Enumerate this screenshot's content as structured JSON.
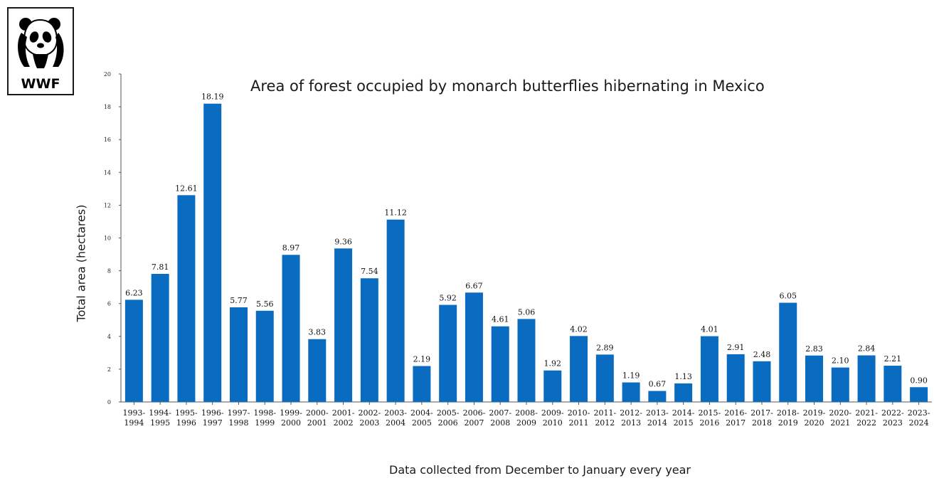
{
  "logo": {
    "text": "WWF",
    "icon": "panda-icon"
  },
  "chart_data": {
    "type": "bar",
    "title": "Area of forest occupied by monarch butterflies hibernating in Mexico",
    "xlabel": "Data collected from December to January every year",
    "ylabel": "Total area (hectares)",
    "ylim": [
      0,
      20
    ],
    "yticks": [
      0,
      2,
      4,
      6,
      8,
      10,
      12,
      14,
      16,
      18,
      20
    ],
    "grid": false,
    "color": "#0a6cc1",
    "categories": [
      [
        "1993-",
        "1994"
      ],
      [
        "1994-",
        "1995"
      ],
      [
        "1995-",
        "1996"
      ],
      [
        "1996-",
        "1997"
      ],
      [
        "1997-",
        "1998"
      ],
      [
        "1998-",
        "1999"
      ],
      [
        "1999-",
        "2000"
      ],
      [
        "2000-",
        "2001"
      ],
      [
        "2001-",
        "2002"
      ],
      [
        "2002-",
        "2003"
      ],
      [
        "2003-",
        "2004"
      ],
      [
        "2004-",
        "2005"
      ],
      [
        "2005-",
        "2006"
      ],
      [
        "2006-",
        "2007"
      ],
      [
        "2007-",
        "2008"
      ],
      [
        "2008-",
        "2009"
      ],
      [
        "2009-",
        "2010"
      ],
      [
        "2010-",
        "2011"
      ],
      [
        "2011-",
        "2012"
      ],
      [
        "2012-",
        "2013"
      ],
      [
        "2013-",
        "2014"
      ],
      [
        "2014-",
        "2015"
      ],
      [
        "2015-",
        "2016"
      ],
      [
        "2016-",
        "2017"
      ],
      [
        "2017-",
        "2018"
      ],
      [
        "2018-",
        "2019"
      ],
      [
        "2019-",
        "2020"
      ],
      [
        "2020-",
        "2021"
      ],
      [
        "2021-",
        "2022"
      ],
      [
        "2022-",
        "2023"
      ],
      [
        "2023-",
        "2024"
      ]
    ],
    "values": [
      6.23,
      7.81,
      12.61,
      18.19,
      5.77,
      5.56,
      8.97,
      3.83,
      9.36,
      7.54,
      11.12,
      2.19,
      5.92,
      6.67,
      4.61,
      5.06,
      1.92,
      4.02,
      2.89,
      1.19,
      0.67,
      1.13,
      4.01,
      2.91,
      2.48,
      6.05,
      2.83,
      2.1,
      2.84,
      2.21,
      0.9
    ],
    "value_labels": [
      "6.23",
      "7.81",
      "12.61",
      "18.19",
      "5.77",
      "5.56",
      "8.97",
      "3.83",
      "9.36",
      "7.54",
      "11.12",
      "2.19",
      "5.92",
      "6.67",
      "4.61",
      "5.06",
      "1.92",
      "4.02",
      "2.89",
      "1.19",
      "0.67",
      "1.13",
      "4.01",
      "2.91",
      "2.48",
      "6.05",
      "2.83",
      "2.10",
      "2.84",
      "2.21",
      "0.90"
    ]
  }
}
